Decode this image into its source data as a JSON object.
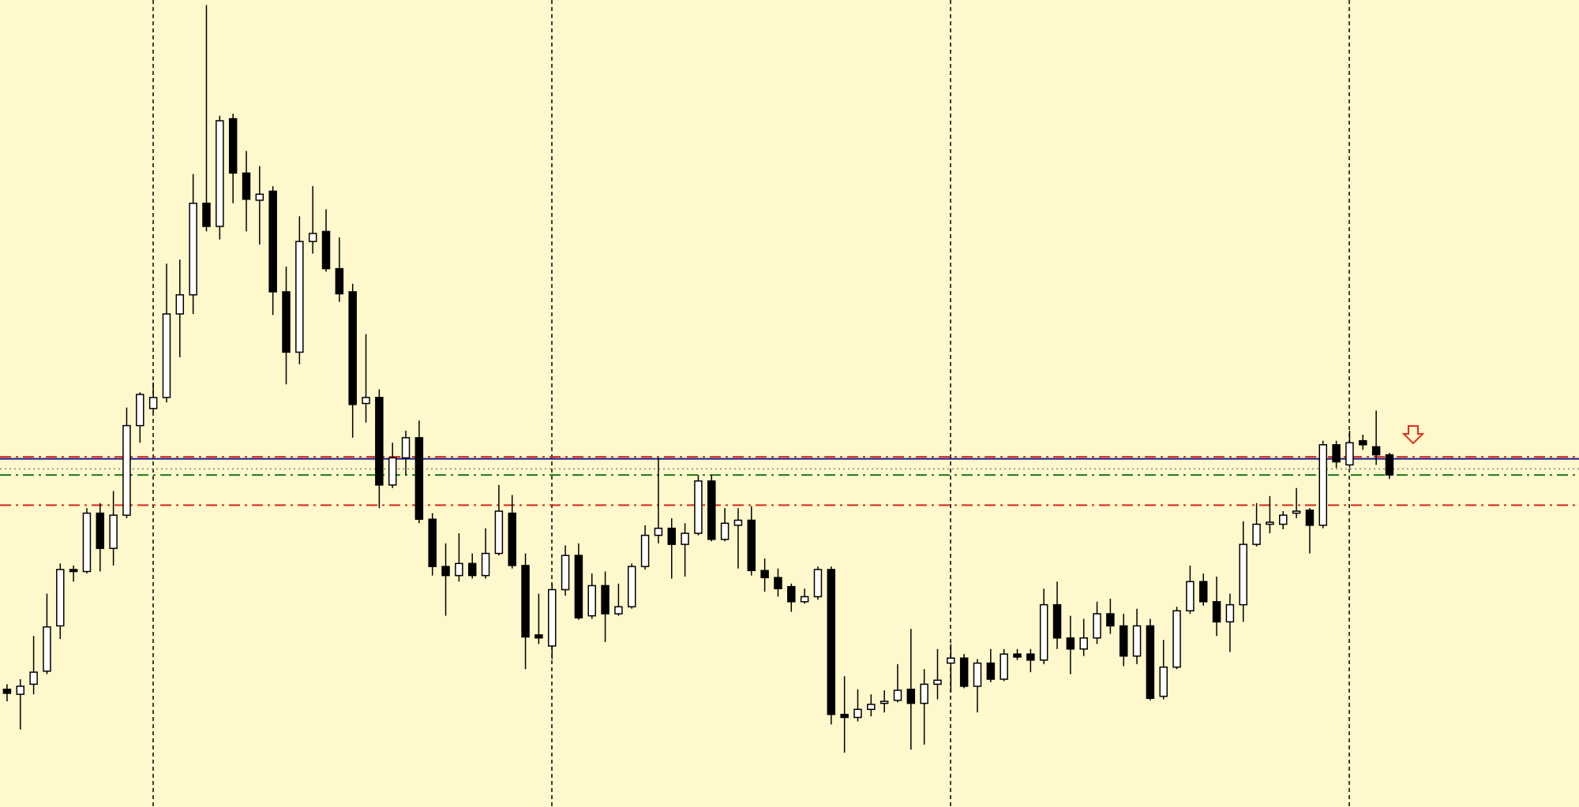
{
  "chart_data": {
    "type": "candlestick",
    "ylim": [
      -2,
      800
    ],
    "up_color": "#ffffff",
    "down_color": "#000000",
    "candles": [
      {
        "open": 115,
        "close": 111,
        "high": 120,
        "low": 103
      },
      {
        "open": 110,
        "close": 118,
        "high": 125,
        "low": 75
      },
      {
        "open": 120,
        "close": 132,
        "high": 168,
        "low": 110
      },
      {
        "open": 133,
        "close": 177,
        "high": 210,
        "low": 130
      },
      {
        "open": 178,
        "close": 234,
        "high": 240,
        "low": 165
      },
      {
        "open": 234,
        "close": 232,
        "high": 238,
        "low": 222
      },
      {
        "open": 232,
        "close": 290,
        "high": 295,
        "low": 230
      },
      {
        "open": 290,
        "close": 255,
        "high": 300,
        "low": 232
      },
      {
        "open": 255,
        "close": 288,
        "high": 312,
        "low": 238
      },
      {
        "open": 288,
        "close": 377,
        "high": 395,
        "low": 285
      },
      {
        "open": 377,
        "close": 408,
        "high": 410,
        "low": 360
      },
      {
        "open": 394,
        "close": 405,
        "high": 420,
        "low": 390
      },
      {
        "open": 405,
        "close": 488,
        "high": 538,
        "low": 400
      },
      {
        "open": 488,
        "close": 507,
        "high": 542,
        "low": 445
      },
      {
        "open": 507,
        "close": 598,
        "high": 627,
        "low": 488
      },
      {
        "open": 598,
        "close": 575,
        "high": 795,
        "low": 570
      },
      {
        "open": 575,
        "close": 680,
        "high": 685,
        "low": 562
      },
      {
        "open": 682,
        "close": 628,
        "high": 687,
        "low": 598
      },
      {
        "open": 628,
        "close": 602,
        "high": 650,
        "low": 570
      },
      {
        "open": 601,
        "close": 607,
        "high": 635,
        "low": 557
      },
      {
        "open": 610,
        "close": 510,
        "high": 615,
        "low": 487
      },
      {
        "open": 510,
        "close": 450,
        "high": 535,
        "low": 418
      },
      {
        "open": 450,
        "close": 560,
        "high": 585,
        "low": 438
      },
      {
        "open": 560,
        "close": 568,
        "high": 615,
        "low": 548
      },
      {
        "open": 570,
        "close": 533,
        "high": 592,
        "low": 530
      },
      {
        "open": 533,
        "close": 508,
        "high": 564,
        "low": 500
      },
      {
        "open": 510,
        "close": 398,
        "high": 518,
        "low": 365
      },
      {
        "open": 399,
        "close": 405,
        "high": 468,
        "low": 380
      },
      {
        "open": 405,
        "close": 318,
        "high": 413,
        "low": 295
      },
      {
        "open": 318,
        "close": 345,
        "high": 360,
        "low": 315
      },
      {
        "open": 345,
        "close": 365,
        "high": 372,
        "low": 328
      },
      {
        "open": 365,
        "close": 284,
        "high": 382,
        "low": 280
      },
      {
        "open": 284,
        "close": 237,
        "high": 290,
        "low": 228
      },
      {
        "open": 237,
        "close": 228,
        "high": 260,
        "low": 188
      },
      {
        "open": 228,
        "close": 240,
        "high": 270,
        "low": 222
      },
      {
        "open": 240,
        "close": 228,
        "high": 250,
        "low": 225
      },
      {
        "open": 228,
        "close": 250,
        "high": 275,
        "low": 225
      },
      {
        "open": 250,
        "close": 292,
        "high": 318,
        "low": 248
      },
      {
        "open": 290,
        "close": 238,
        "high": 308,
        "low": 235
      },
      {
        "open": 238,
        "close": 167,
        "high": 250,
        "low": 135
      },
      {
        "open": 169,
        "close": 166,
        "high": 210,
        "low": 160
      },
      {
        "open": 158,
        "close": 214,
        "high": 220,
        "low": 145
      },
      {
        "open": 214,
        "close": 248,
        "high": 258,
        "low": 208
      },
      {
        "open": 248,
        "close": 186,
        "high": 260,
        "low": 184
      },
      {
        "open": 188,
        "close": 218,
        "high": 230,
        "low": 185
      },
      {
        "open": 218,
        "close": 190,
        "high": 232,
        "low": 162
      },
      {
        "open": 190,
        "close": 197,
        "high": 220,
        "low": 188
      },
      {
        "open": 197,
        "close": 237,
        "high": 240,
        "low": 195
      },
      {
        "open": 237,
        "close": 268,
        "high": 278,
        "low": 234
      },
      {
        "open": 268,
        "close": 275,
        "high": 345,
        "low": 260
      },
      {
        "open": 275,
        "close": 259,
        "high": 285,
        "low": 225
      },
      {
        "open": 259,
        "close": 270,
        "high": 280,
        "low": 227
      },
      {
        "open": 270,
        "close": 322,
        "high": 328,
        "low": 268
      },
      {
        "open": 322,
        "close": 264,
        "high": 328,
        "low": 262
      },
      {
        "open": 264,
        "close": 280,
        "high": 295,
        "low": 262
      },
      {
        "open": 278,
        "close": 283,
        "high": 295,
        "low": 235
      },
      {
        "open": 283,
        "close": 233,
        "high": 297,
        "low": 228
      },
      {
        "open": 233,
        "close": 226,
        "high": 245,
        "low": 212
      },
      {
        "open": 226,
        "close": 215,
        "high": 235,
        "low": 207
      },
      {
        "open": 217,
        "close": 202,
        "high": 220,
        "low": 192
      },
      {
        "open": 202,
        "close": 207,
        "high": 215,
        "low": 200
      },
      {
        "open": 207,
        "close": 234,
        "high": 237,
        "low": 204
      },
      {
        "open": 234,
        "close": 90,
        "high": 237,
        "low": 80
      },
      {
        "open": 90,
        "close": 87,
        "high": 128,
        "low": 52
      },
      {
        "open": 87,
        "close": 95,
        "high": 115,
        "low": 83
      },
      {
        "open": 95,
        "close": 100,
        "high": 110,
        "low": 88
      },
      {
        "open": 101,
        "close": 103,
        "high": 114,
        "low": 92
      },
      {
        "open": 104,
        "close": 114,
        "high": 140,
        "low": 102
      },
      {
        "open": 115,
        "close": 101,
        "high": 175,
        "low": 55
      },
      {
        "open": 101,
        "close": 120,
        "high": 135,
        "low": 60
      },
      {
        "open": 120,
        "close": 124,
        "high": 155,
        "low": 105
      },
      {
        "open": 141,
        "close": 146,
        "high": 160,
        "low": 112
      },
      {
        "open": 146,
        "close": 118,
        "high": 150,
        "low": 116
      },
      {
        "open": 118,
        "close": 141,
        "high": 145,
        "low": 92
      },
      {
        "open": 141,
        "close": 125,
        "high": 155,
        "low": 122
      },
      {
        "open": 125,
        "close": 150,
        "high": 155,
        "low": 123
      },
      {
        "open": 150,
        "close": 147,
        "high": 155,
        "low": 144
      },
      {
        "open": 150,
        "close": 144,
        "high": 155,
        "low": 132
      },
      {
        "open": 144,
        "close": 199,
        "high": 215,
        "low": 140
      },
      {
        "open": 199,
        "close": 166,
        "high": 222,
        "low": 155
      },
      {
        "open": 166,
        "close": 155,
        "high": 188,
        "low": 130
      },
      {
        "open": 155,
        "close": 166,
        "high": 185,
        "low": 148
      },
      {
        "open": 166,
        "close": 190,
        "high": 202,
        "low": 160
      },
      {
        "open": 190,
        "close": 178,
        "high": 205,
        "low": 170
      },
      {
        "open": 178,
        "close": 148,
        "high": 190,
        "low": 138
      },
      {
        "open": 148,
        "close": 178,
        "high": 195,
        "low": 140
      },
      {
        "open": 178,
        "close": 106,
        "high": 185,
        "low": 104
      },
      {
        "open": 108,
        "close": 137,
        "high": 164,
        "low": 105
      },
      {
        "open": 137,
        "close": 193,
        "high": 197,
        "low": 135
      },
      {
        "open": 193,
        "close": 222,
        "high": 238,
        "low": 190
      },
      {
        "open": 222,
        "close": 202,
        "high": 230,
        "low": 198
      },
      {
        "open": 202,
        "close": 182,
        "high": 227,
        "low": 168
      },
      {
        "open": 182,
        "close": 199,
        "high": 210,
        "low": 152
      },
      {
        "open": 199,
        "close": 259,
        "high": 282,
        "low": 182
      },
      {
        "open": 259,
        "close": 279,
        "high": 300,
        "low": 257
      },
      {
        "open": 279,
        "close": 281,
        "high": 307,
        "low": 270
      },
      {
        "open": 279,
        "close": 288,
        "high": 292,
        "low": 274
      },
      {
        "open": 290,
        "close": 292,
        "high": 315,
        "low": 285
      },
      {
        "open": 293,
        "close": 278,
        "high": 295,
        "low": 250
      },
      {
        "open": 278,
        "close": 358,
        "high": 362,
        "low": 275
      },
      {
        "open": 358,
        "close": 341,
        "high": 362,
        "low": 335
      },
      {
        "open": 338,
        "close": 360,
        "high": 372,
        "low": 335
      },
      {
        "open": 362,
        "close": 358,
        "high": 368,
        "low": 353
      },
      {
        "open": 356,
        "close": 348,
        "high": 392,
        "low": 338
      },
      {
        "open": 348,
        "close": 328,
        "high": 350,
        "low": 324
      }
    ],
    "levels": [
      {
        "value": 346,
        "color": "#d42a1a",
        "style": "dashdot"
      },
      {
        "value": 344,
        "color": "#1a1a8c",
        "style": "solid"
      },
      {
        "value": 334,
        "color": "#9a9a9a",
        "style": "dotted"
      },
      {
        "value": 328,
        "color": "#1a7a1a",
        "style": "dashdot"
      },
      {
        "value": 298,
        "color": "#d42a1a",
        "style": "dashdot"
      }
    ]
  }
}
